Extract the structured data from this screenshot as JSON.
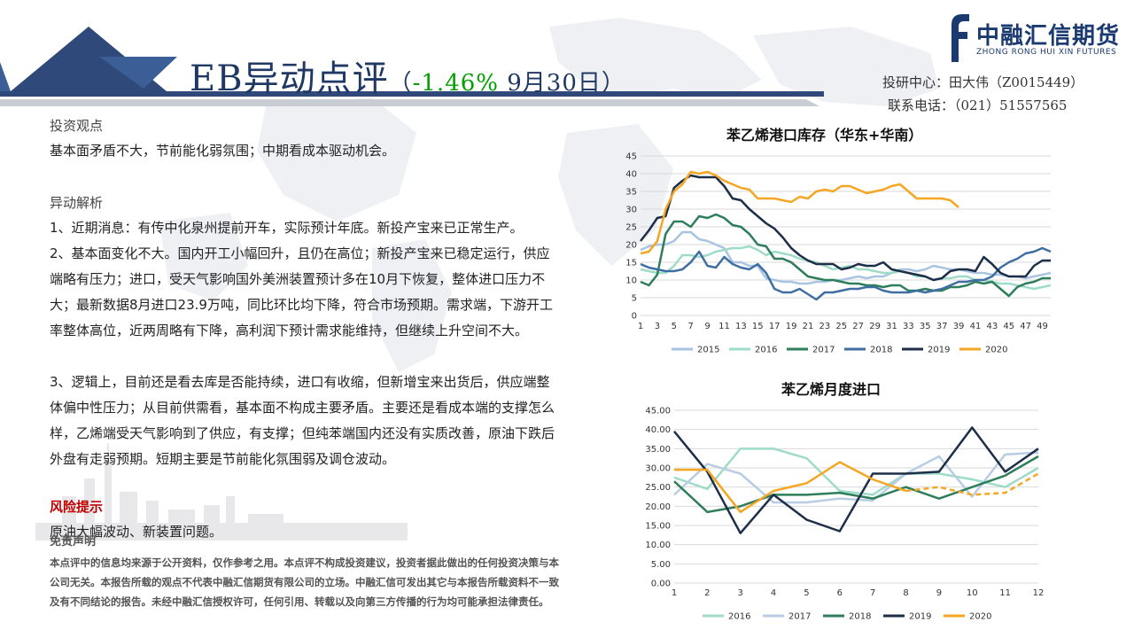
{
  "header": {
    "title_main": "EB异动点评",
    "title_paren_open": "（",
    "title_change": "-1.46%",
    "title_date": " 9月30日）",
    "logo_cn": "中融汇信期货",
    "logo_en": "ZHONG RONG HUI XIN FUTURES",
    "contact_line1": "投研中心：田大伟（Z0015449）",
    "contact_line2": "联系电话：（021）51557565",
    "colors": {
      "title": "#1f3864",
      "change": "#00a000",
      "risk": "#c00000"
    }
  },
  "investment_view": {
    "heading": "投资观点",
    "text": "基本面矛盾不大，节前能化弱氛围；中期看成本驱动机会。"
  },
  "analysis": {
    "heading": "异动解析",
    "p1": "1、近期消息：有传中化泉州提前开车，实际预计年底。新投产宝来已正常生产。",
    "p2": "2、基本面变化不大。国内开工小幅回升，且仍在高位；新投产宝来已稳定运行，供应端略有压力；进口，受天气影响国外美洲装置预计多在10月下恢复，整体进口压力不大；最新数据8月进口23.9万吨，同比环比均下降，符合市场预期。需求端，下游开工率整体高位，近两周略有下降，高利润下预计需求能维持，但继续上升空间不大。",
    "p3": "3、逻辑上，目前还是看去库是否能持续，进口有收缩，但新增宝来出货后，供应端整体偏中性压力；从目前供需看，基本面不构成主要矛盾。主要还是看成本端的支撑怎么样，乙烯端受天气影响到了供应，有支撑；但纯苯端国内还没有实质改善，原油下跌后外盘有走弱预期。短期主要是节前能化氛围弱及调仓波动。"
  },
  "risk": {
    "heading": "风险提示",
    "text": "原油大幅波动、新装置问题。"
  },
  "disclaimer": {
    "heading": "免责声明",
    "text": "本点评中的信息均来源于公开资料，仅作参考之用。本点评不构成投资建议，投资者据此做出的任何投资决策与本公司无关。本报告所载的观点不代表中融汇信期货有限公司的立场。中融汇信可发出其它与本报告所载资料不一致及有不同结论的报告。未经中融汇信授权许可，任何引用、转载以及向第三方传播的行为均可能承担法律责任。"
  },
  "chart_data": [
    {
      "type": "line",
      "title": "苯乙烯港口库存（华东+华南）",
      "xlabel": "",
      "ylabel": "",
      "x": [
        1,
        2,
        3,
        4,
        5,
        6,
        7,
        8,
        9,
        10,
        11,
        12,
        13,
        14,
        15,
        16,
        17,
        18,
        19,
        20,
        21,
        22,
        23,
        24,
        25,
        26,
        27,
        28,
        29,
        30,
        31,
        32,
        33,
        34,
        35,
        36,
        37,
        38,
        39,
        40,
        41,
        42,
        43,
        44,
        45,
        46,
        47,
        48,
        49,
        50
      ],
      "x_tick_labels": [
        "1",
        "3",
        "5",
        "7",
        "9",
        "11",
        "13",
        "15",
        "17",
        "19",
        "21",
        "23",
        "25",
        "27",
        "29",
        "31",
        "33",
        "35",
        "37",
        "39",
        "41",
        "43",
        "45",
        "47",
        "49"
      ],
      "y_ticks": [
        0,
        5,
        10,
        15,
        20,
        25,
        30,
        35,
        40,
        45
      ],
      "ylim": [
        0,
        45
      ],
      "grid": true,
      "legend_position": "bottom",
      "series": [
        {
          "name": "2015",
          "color": "#a9c4e0",
          "values": [
            18.5,
            19.5,
            20,
            20,
            21,
            23.5,
            23.5,
            21.5,
            21,
            20,
            19,
            15,
            15,
            14,
            14,
            10.5,
            10,
            9.5,
            9.5,
            9,
            9,
            9.5,
            9.5,
            10,
            10,
            10.5,
            11,
            10.5,
            11,
            11,
            12,
            13,
            13,
            12.5,
            13,
            14,
            13.5,
            13,
            13,
            12.5,
            12,
            12,
            11.5,
            11.5,
            11,
            11,
            10.5,
            11,
            11.5,
            12
          ]
        },
        {
          "name": "2016",
          "color": "#9edbc9",
          "values": [
            13,
            12.5,
            12,
            12,
            14,
            17,
            17,
            16.5,
            17,
            18,
            18.5,
            19,
            19,
            19.5,
            18.5,
            17,
            18,
            17.5,
            17,
            16,
            15.5,
            15,
            14,
            13,
            13.5,
            14,
            13,
            13,
            12.5,
            12,
            12,
            12.5,
            12,
            11,
            11,
            10,
            10.5,
            10.5,
            11,
            11,
            10,
            10,
            9.5,
            9,
            9,
            8.5,
            8,
            7.5,
            8,
            8.5
          ]
        },
        {
          "name": "2017",
          "color": "#2e7d5b",
          "values": [
            9.5,
            8.5,
            11.5,
            23,
            26.5,
            26.5,
            25,
            28,
            27.5,
            28.5,
            27.5,
            25.5,
            25,
            23,
            20,
            19.5,
            16,
            16,
            15,
            13,
            11,
            10.5,
            10,
            10,
            9.5,
            9,
            9,
            8.5,
            8.5,
            8,
            8.5,
            8.5,
            7,
            7,
            7.5,
            7,
            7,
            8,
            8,
            8.5,
            9.5,
            9,
            9.5,
            7.5,
            5.5,
            8,
            9,
            9.5,
            10.5,
            10.5
          ]
        },
        {
          "name": "2018",
          "color": "#3f6ea3",
          "values": [
            14.5,
            13.5,
            13,
            12.5,
            12.5,
            13,
            15,
            18,
            14,
            13.5,
            16.5,
            14.5,
            13.5,
            13,
            14.5,
            12,
            7.5,
            6.5,
            6.5,
            7.5,
            6,
            4.5,
            6.5,
            6.5,
            7,
            7.5,
            7.5,
            8,
            8,
            7,
            6.5,
            6.5,
            6.5,
            7,
            6.5,
            7,
            7.5,
            8.5,
            9.5,
            9.5,
            10,
            10,
            11,
            13.5,
            15,
            16,
            17.5,
            18,
            19,
            18
          ]
        },
        {
          "name": "2019",
          "color": "#1c2e48",
          "values": [
            21,
            24,
            27.5,
            28,
            36,
            38,
            39.5,
            39,
            39,
            39,
            36.5,
            33,
            32.5,
            30,
            28,
            26,
            24.5,
            22,
            19,
            17,
            15.5,
            14.5,
            14.5,
            14.5,
            13,
            13.5,
            14.5,
            14,
            14,
            15,
            13,
            12.5,
            12,
            11.5,
            11,
            10,
            10.5,
            12.5,
            13,
            13,
            12.5,
            16.5,
            14.5,
            12,
            11,
            11,
            11,
            14,
            15.5,
            15.5
          ]
        },
        {
          "name": "2020",
          "color": "#f5a623",
          "values": [
            17.5,
            18,
            21,
            30,
            35,
            37,
            40.5,
            40,
            40.5,
            39.5,
            38,
            37,
            36,
            35.5,
            33,
            33,
            33,
            32.5,
            32,
            33.5,
            33,
            35,
            35.5,
            35,
            36.5,
            36.5,
            35.5,
            34.5,
            35,
            35.5,
            36.5,
            37,
            35,
            33,
            33,
            33,
            33,
            32.5,
            30.5,
            null,
            null,
            null,
            null,
            null,
            null,
            null,
            null,
            null,
            null,
            null
          ]
        }
      ]
    },
    {
      "type": "line",
      "title": "苯乙烯月度进口",
      "xlabel": "",
      "ylabel": "",
      "x": [
        1,
        2,
        3,
        4,
        5,
        6,
        7,
        8,
        9,
        10,
        11,
        12
      ],
      "x_tick_labels": [
        "1",
        "2",
        "3",
        "4",
        "5",
        "6",
        "7",
        "8",
        "9",
        "10",
        "11",
        "12"
      ],
      "y_ticks": [
        "0.00",
        "5.00",
        "10.00",
        "15.00",
        "20.00",
        "25.00",
        "30.00",
        "35.00",
        "40.00",
        "45.00"
      ],
      "ylim": [
        0,
        45
      ],
      "grid": true,
      "legend_position": "bottom",
      "series": [
        {
          "name": "2016",
          "color": "#9edbc9",
          "dashed_from_index": null,
          "values": [
            27.5,
            24.5,
            35,
            35,
            32.5,
            24,
            23,
            28.5,
            28.5,
            27,
            25,
            30
          ]
        },
        {
          "name": "2017",
          "color": "#b8cce4",
          "dashed_from_index": null,
          "values": [
            23,
            31,
            28.5,
            21,
            21,
            22,
            21.5,
            28.5,
            33,
            22.5,
            33.5,
            34
          ]
        },
        {
          "name": "2018",
          "color": "#2e7d5b",
          "dashed_from_index": null,
          "values": [
            26.5,
            18.5,
            20,
            23,
            23,
            23.5,
            22,
            25,
            22,
            25,
            28,
            33
          ]
        },
        {
          "name": "2019",
          "color": "#1c2e48",
          "dashed_from_index": null,
          "values": [
            39.5,
            29,
            13,
            23,
            16.5,
            13.5,
            28.5,
            28.5,
            29,
            40.5,
            29,
            35
          ]
        },
        {
          "name": "2020",
          "color": "#f5a623",
          "dashed_from_index": 7,
          "values": [
            29.5,
            29.5,
            18.5,
            24,
            26,
            31.5,
            27,
            24,
            25,
            23,
            23.5,
            28.5
          ]
        }
      ]
    }
  ]
}
